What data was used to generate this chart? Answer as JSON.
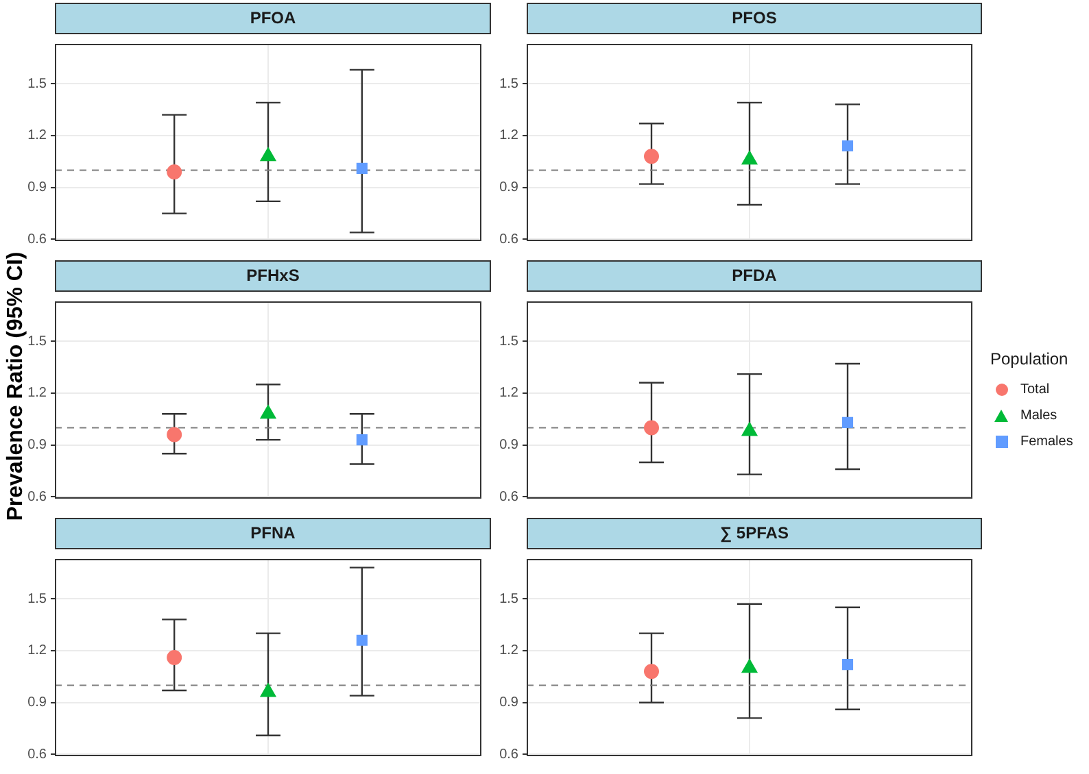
{
  "chart_data": [
    {
      "type": "scatter",
      "title": "PFOA",
      "ylabel": "Prevalence Ratio (95% CI)",
      "legend_title": "Population",
      "legend": "right",
      "categories": [
        null
      ],
      "ylim": [
        0.59,
        1.73
      ],
      "yticks": [
        0.6,
        0.9,
        1.2,
        1.5
      ],
      "grid": true,
      "tick_labels": "y",
      "ref_lines": [
        {
          "axis": "y",
          "value": 1,
          "color": "#7f7f7f",
          "line_style": "dashed"
        }
      ],
      "series": [
        {
          "name": "Total",
          "color": "#f8766d",
          "marker": "circle",
          "values": [
            0.99
          ],
          "errors": [
            [
              0.75,
              1.32
            ]
          ]
        },
        {
          "name": "Males",
          "color": "#00ba38",
          "marker": "triangle",
          "values": [
            1.08
          ],
          "errors": [
            [
              0.82,
              1.39
            ]
          ]
        },
        {
          "name": "Females",
          "color": "#619cff",
          "marker": "square",
          "values": [
            1.01
          ],
          "errors": [
            [
              0.64,
              1.58
            ]
          ]
        }
      ]
    },
    {
      "type": "scatter",
      "title": "PFOS",
      "categories": [
        null
      ],
      "ylim": [
        0.59,
        1.73
      ],
      "yticks": [
        0.6,
        0.9,
        1.2,
        1.5
      ],
      "grid": true,
      "tick_labels": "y",
      "ref_lines": [
        {
          "axis": "y",
          "value": 1,
          "color": "#7f7f7f",
          "line_style": "dashed"
        }
      ],
      "series": [
        {
          "color": "#f8766d",
          "marker": "circle",
          "values": [
            1.08
          ],
          "errors": [
            [
              0.92,
              1.27
            ]
          ]
        },
        {
          "color": "#00ba38",
          "marker": "triangle",
          "values": [
            1.06
          ],
          "errors": [
            [
              0.8,
              1.39
            ]
          ]
        },
        {
          "color": "#619cff",
          "marker": "square",
          "values": [
            1.14
          ],
          "errors": [
            [
              0.92,
              1.38
            ]
          ]
        }
      ]
    },
    {
      "type": "scatter",
      "title": "PFHxS",
      "categories": [
        null
      ],
      "ylim": [
        0.59,
        1.73
      ],
      "yticks": [
        0.6,
        0.9,
        1.2,
        1.5
      ],
      "grid": true,
      "tick_labels": "y",
      "ref_lines": [
        {
          "axis": "y",
          "value": 1,
          "color": "#7f7f7f",
          "line_style": "dashed"
        }
      ],
      "series": [
        {
          "color": "#f8766d",
          "marker": "circle",
          "values": [
            0.96
          ],
          "errors": [
            [
              0.85,
              1.08
            ]
          ]
        },
        {
          "color": "#00ba38",
          "marker": "triangle",
          "values": [
            1.08
          ],
          "errors": [
            [
              0.93,
              1.25
            ]
          ]
        },
        {
          "color": "#619cff",
          "marker": "square",
          "values": [
            0.93
          ],
          "errors": [
            [
              0.79,
              1.08
            ]
          ]
        }
      ]
    },
    {
      "type": "scatter",
      "title": "PFDA",
      "categories": [
        null
      ],
      "ylim": [
        0.59,
        1.73
      ],
      "yticks": [
        0.6,
        0.9,
        1.2,
        1.5
      ],
      "grid": true,
      "tick_labels": "y",
      "ref_lines": [
        {
          "axis": "y",
          "value": 1,
          "color": "#7f7f7f",
          "line_style": "dashed"
        }
      ],
      "series": [
        {
          "color": "#f8766d",
          "marker": "circle",
          "values": [
            1.0
          ],
          "errors": [
            [
              0.8,
              1.26
            ]
          ]
        },
        {
          "color": "#00ba38",
          "marker": "triangle",
          "values": [
            0.98
          ],
          "errors": [
            [
              0.73,
              1.31
            ]
          ]
        },
        {
          "color": "#619cff",
          "marker": "square",
          "values": [
            1.03
          ],
          "errors": [
            [
              0.76,
              1.37
            ]
          ]
        }
      ]
    },
    {
      "type": "scatter",
      "title": "PFNA",
      "categories": [
        null
      ],
      "ylim": [
        0.59,
        1.73
      ],
      "yticks": [
        0.6,
        0.9,
        1.2,
        1.5
      ],
      "grid": true,
      "tick_labels": "y",
      "ref_lines": [
        {
          "axis": "y",
          "value": 1,
          "color": "#7f7f7f",
          "line_style": "dashed"
        }
      ],
      "series": [
        {
          "color": "#f8766d",
          "marker": "circle",
          "values": [
            1.16
          ],
          "errors": [
            [
              0.97,
              1.38
            ]
          ]
        },
        {
          "color": "#00ba38",
          "marker": "triangle",
          "values": [
            0.96
          ],
          "errors": [
            [
              0.71,
              1.3
            ]
          ]
        },
        {
          "color": "#619cff",
          "marker": "square",
          "values": [
            1.26
          ],
          "errors": [
            [
              0.94,
              1.68
            ]
          ]
        }
      ]
    },
    {
      "type": "scatter",
      "title": "∑ 5PFAS",
      "categories": [
        null
      ],
      "ylim": [
        0.59,
        1.73
      ],
      "yticks": [
        0.6,
        0.9,
        1.2,
        1.5
      ],
      "grid": true,
      "tick_labels": "y",
      "ref_lines": [
        {
          "axis": "y",
          "value": 1,
          "color": "#7f7f7f",
          "line_style": "dashed"
        }
      ],
      "series": [
        {
          "color": "#f8766d",
          "marker": "circle",
          "values": [
            1.08
          ],
          "errors": [
            [
              0.9,
              1.3
            ]
          ]
        },
        {
          "color": "#00ba38",
          "marker": "triangle",
          "values": [
            1.1
          ],
          "errors": [
            [
              0.81,
              1.47
            ]
          ]
        },
        {
          "color": "#619cff",
          "marker": "square",
          "values": [
            1.12
          ],
          "errors": [
            [
              0.86,
              1.45
            ]
          ]
        }
      ]
    }
  ]
}
